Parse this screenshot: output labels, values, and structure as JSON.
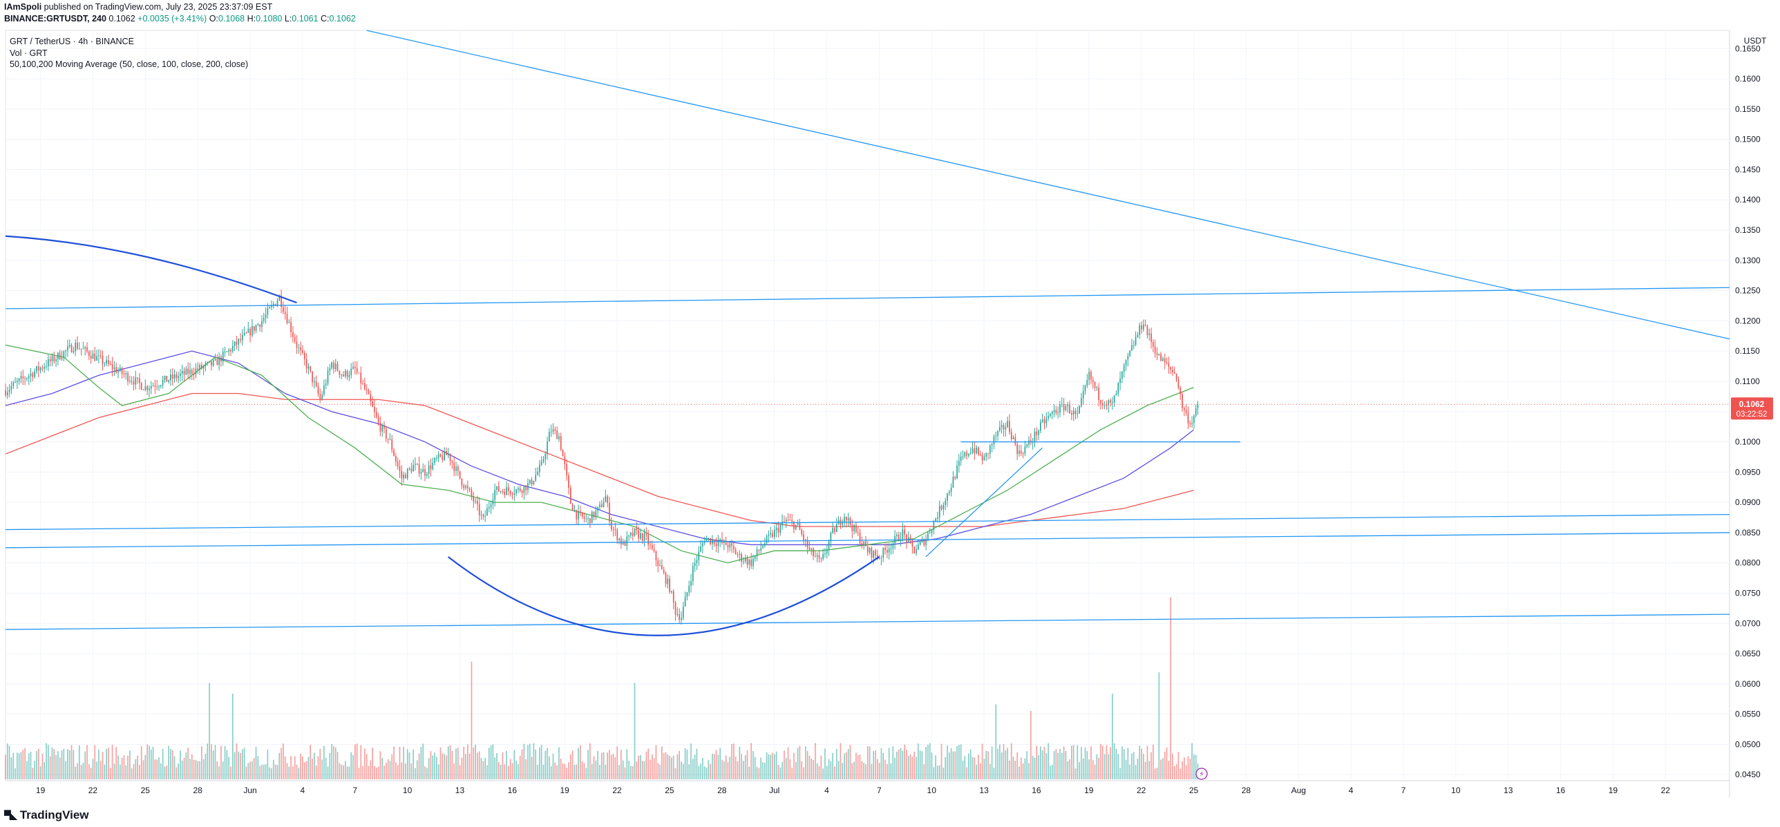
{
  "header": {
    "author": "IAmSpoli",
    "published_text": "published on TradingView.com, July 23, 2025 23:37:09 EST",
    "symbol": "BINANCE:GRTUSDT, 240",
    "last": "0.1062",
    "change": "+0.0035 (+3.41%)",
    "o_label": "O:",
    "o": "0.1068",
    "h_label": "H:",
    "h": "0.1080",
    "l_label": "L:",
    "l": "0.1061",
    "c_label": "C:",
    "c": "0.1062"
  },
  "legend": {
    "pair": "GRT / TetherUS · 4h · BINANCE",
    "vol": "Vol · GRT",
    "ma": "50,100,200 Moving Average (50, close, 100, close, 200, close)"
  },
  "brand": {
    "name": "TradingView",
    "logo_icon": "tradingview-logo-icon"
  },
  "colors": {
    "up": "#26a69a",
    "down": "#ef5350",
    "ma50": "#4caf50",
    "ma100": "#5b4fe0",
    "ma200": "#ef5350",
    "trend": "#2196f3",
    "arc": "#1e4fd8"
  },
  "chart_data": {
    "type": "candlestick",
    "symbol": "GRT/USDT",
    "timeframe": "4h",
    "y_unit": "USDT",
    "ylim": [
      0.044,
      0.168
    ],
    "y_ticks": [
      "0.1650",
      "0.1600",
      "0.1550",
      "0.1500",
      "0.1450",
      "0.1400",
      "0.1350",
      "0.1300",
      "0.1250",
      "0.1200",
      "0.1150",
      "0.1100",
      "0.1050",
      "0.1000",
      "0.0950",
      "0.0900",
      "0.0850",
      "0.0800",
      "0.0750",
      "0.0700",
      "0.0650",
      "0.0600",
      "0.0550",
      "0.0500",
      "0.0450"
    ],
    "x_ticks": [
      "19",
      "22",
      "25",
      "28",
      "Jun",
      "4",
      "7",
      "10",
      "13",
      "16",
      "19",
      "22",
      "25",
      "28",
      "Jul",
      "4",
      "7",
      "10",
      "13",
      "16",
      "19",
      "22",
      "25",
      "28",
      "Aug",
      "4",
      "7",
      "10",
      "13",
      "16",
      "19",
      "22"
    ],
    "last_price_label": "0.1062",
    "countdown_label": "03:22:52",
    "price_path": [
      [
        0,
        0.1085
      ],
      [
        6,
        0.116
      ],
      [
        12,
        0.109
      ],
      [
        18,
        0.113
      ],
      [
        22,
        0.12
      ],
      [
        23.5,
        0.124
      ],
      [
        25,
        0.116
      ],
      [
        26,
        0.112
      ],
      [
        27,
        0.107
      ],
      [
        28,
        0.113
      ],
      [
        29,
        0.111
      ],
      [
        30,
        0.112
      ],
      [
        31,
        0.108
      ],
      [
        32,
        0.103
      ],
      [
        33,
        0.1
      ],
      [
        34,
        0.094
      ],
      [
        35,
        0.096
      ],
      [
        36,
        0.095
      ],
      [
        37,
        0.097
      ],
      [
        38,
        0.098
      ],
      [
        39,
        0.094
      ],
      [
        40,
        0.091
      ],
      [
        41,
        0.087
      ],
      [
        42,
        0.092
      ],
      [
        43,
        0.092
      ],
      [
        44,
        0.092
      ],
      [
        45,
        0.093
      ],
      [
        46,
        0.096
      ],
      [
        46.8,
        0.102
      ],
      [
        47.5,
        0.101
      ],
      [
        48,
        0.096
      ],
      [
        48.5,
        0.09
      ],
      [
        49,
        0.088
      ],
      [
        50,
        0.087
      ],
      [
        51,
        0.089
      ],
      [
        51.5,
        0.091
      ],
      [
        52,
        0.086
      ],
      [
        53,
        0.083
      ],
      [
        54,
        0.085
      ],
      [
        55,
        0.084
      ],
      [
        56,
        0.08
      ],
      [
        57,
        0.076
      ],
      [
        57.5,
        0.072
      ],
      [
        58,
        0.071
      ],
      [
        59,
        0.079
      ],
      [
        60,
        0.084
      ],
      [
        62,
        0.083
      ],
      [
        63,
        0.081
      ],
      [
        64,
        0.08
      ],
      [
        65,
        0.083
      ],
      [
        66,
        0.085
      ],
      [
        67,
        0.087
      ],
      [
        68,
        0.086
      ],
      [
        69,
        0.082
      ],
      [
        70,
        0.08
      ],
      [
        71,
        0.085
      ],
      [
        72,
        0.088
      ],
      [
        73,
        0.085
      ],
      [
        74,
        0.082
      ],
      [
        75,
        0.081
      ],
      [
        76,
        0.083
      ],
      [
        77,
        0.085
      ],
      [
        78,
        0.082
      ],
      [
        79,
        0.084
      ],
      [
        80,
        0.088
      ],
      [
        81,
        0.092
      ],
      [
        82,
        0.097
      ],
      [
        83,
        0.099
      ],
      [
        84,
        0.097
      ],
      [
        85,
        0.101
      ],
      [
        86,
        0.103
      ],
      [
        87,
        0.098
      ],
      [
        88,
        0.1
      ],
      [
        89,
        0.103
      ],
      [
        90,
        0.105
      ],
      [
        91,
        0.106
      ],
      [
        92,
        0.104
      ],
      [
        93,
        0.111
      ],
      [
        94,
        0.107
      ],
      [
        95,
        0.106
      ],
      [
        96,
        0.112
      ],
      [
        97,
        0.117
      ],
      [
        97.7,
        0.12
      ],
      [
        98,
        0.118
      ],
      [
        99,
        0.114
      ],
      [
        100,
        0.112
      ],
      [
        100.5,
        0.111
      ],
      [
        101,
        0.106
      ],
      [
        101.7,
        0.103
      ],
      [
        102.2,
        0.105
      ],
      [
        102.5,
        0.1062
      ]
    ],
    "ma50": [
      [
        0,
        0.116
      ],
      [
        5,
        0.114
      ],
      [
        8,
        0.109
      ],
      [
        10,
        0.106
      ],
      [
        14,
        0.108
      ],
      [
        18,
        0.114
      ],
      [
        22,
        0.111
      ],
      [
        26,
        0.104
      ],
      [
        30,
        0.099
      ],
      [
        34,
        0.093
      ],
      [
        38,
        0.092
      ],
      [
        42,
        0.09
      ],
      [
        46,
        0.09
      ],
      [
        50,
        0.088
      ],
      [
        54,
        0.086
      ],
      [
        58,
        0.082
      ],
      [
        62,
        0.08
      ],
      [
        66,
        0.082
      ],
      [
        70,
        0.082
      ],
      [
        74,
        0.083
      ],
      [
        78,
        0.084
      ],
      [
        82,
        0.088
      ],
      [
        86,
        0.092
      ],
      [
        90,
        0.097
      ],
      [
        94,
        0.102
      ],
      [
        98,
        0.106
      ],
      [
        102,
        0.109
      ]
    ],
    "ma100": [
      [
        0,
        0.106
      ],
      [
        4,
        0.108
      ],
      [
        8,
        0.111
      ],
      [
        12,
        0.113
      ],
      [
        16,
        0.115
      ],
      [
        20,
        0.113
      ],
      [
        24,
        0.108
      ],
      [
        28,
        0.105
      ],
      [
        32,
        0.103
      ],
      [
        36,
        0.1
      ],
      [
        40,
        0.096
      ],
      [
        44,
        0.093
      ],
      [
        48,
        0.091
      ],
      [
        52,
        0.088
      ],
      [
        56,
        0.086
      ],
      [
        60,
        0.084
      ],
      [
        64,
        0.083
      ],
      [
        68,
        0.083
      ],
      [
        72,
        0.083
      ],
      [
        76,
        0.083
      ],
      [
        80,
        0.084
      ],
      [
        84,
        0.086
      ],
      [
        88,
        0.088
      ],
      [
        92,
        0.091
      ],
      [
        96,
        0.094
      ],
      [
        100,
        0.099
      ],
      [
        102,
        0.102
      ]
    ],
    "ma200": [
      [
        0,
        0.098
      ],
      [
        4,
        0.101
      ],
      [
        8,
        0.104
      ],
      [
        12,
        0.106
      ],
      [
        16,
        0.108
      ],
      [
        20,
        0.108
      ],
      [
        24,
        0.107
      ],
      [
        28,
        0.107
      ],
      [
        32,
        0.107
      ],
      [
        36,
        0.106
      ],
      [
        40,
        0.103
      ],
      [
        44,
        0.1
      ],
      [
        48,
        0.097
      ],
      [
        52,
        0.094
      ],
      [
        56,
        0.091
      ],
      [
        60,
        0.089
      ],
      [
        64,
        0.087
      ],
      [
        68,
        0.086
      ],
      [
        72,
        0.086
      ],
      [
        76,
        0.086
      ],
      [
        80,
        0.086
      ],
      [
        84,
        0.086
      ],
      [
        88,
        0.087
      ],
      [
        92,
        0.088
      ],
      [
        96,
        0.089
      ],
      [
        100,
        0.091
      ],
      [
        102,
        0.092
      ]
    ],
    "trendlines": [
      [
        [
          31,
          0.168
        ],
        [
          148,
          0.117
        ]
      ],
      [
        [
          0,
          0.122
        ],
        [
          148,
          0.1255
        ]
      ],
      [
        [
          0,
          0.0855
        ],
        [
          148,
          0.088
        ]
      ],
      [
        [
          0,
          0.0825
        ],
        [
          148,
          0.085
        ]
      ],
      [
        [
          0,
          0.069
        ],
        [
          148,
          0.0715
        ]
      ],
      [
        [
          82,
          0.1
        ],
        [
          106,
          0.1
        ]
      ],
      [
        [
          79,
          0.081
        ],
        [
          89,
          0.099
        ]
      ]
    ],
    "arcs": [
      [
        [
          0,
          0.134
        ],
        [
          8,
          0.133
        ],
        [
          16,
          0.1295
        ],
        [
          25,
          0.123
        ]
      ],
      [
        [
          38,
          0.081
        ],
        [
          56,
          0.068
        ],
        [
          75,
          0.081
        ]
      ]
    ],
    "volume_axis_max": 100,
    "volume_spikes": [
      [
        40,
        0.55
      ],
      [
        100,
        0.85
      ],
      [
        102.5,
        0.9
      ],
      [
        17.5,
        0.45
      ],
      [
        19.5,
        0.4
      ],
      [
        54,
        0.45
      ],
      [
        85,
        0.35
      ],
      [
        88,
        0.32
      ],
      [
        95,
        0.4
      ],
      [
        99,
        0.5
      ]
    ]
  }
}
